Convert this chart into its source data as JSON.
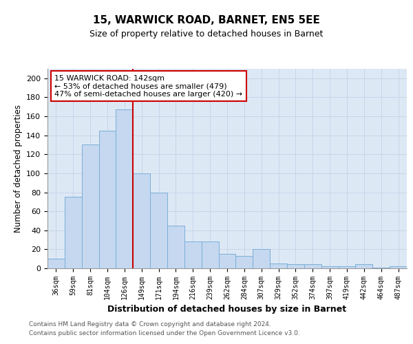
{
  "title": "15, WARWICK ROAD, BARNET, EN5 5EE",
  "subtitle": "Size of property relative to detached houses in Barnet",
  "xlabel": "Distribution of detached houses by size in Barnet",
  "ylabel": "Number of detached properties",
  "categories": [
    "36sqm",
    "59sqm",
    "81sqm",
    "104sqm",
    "126sqm",
    "149sqm",
    "171sqm",
    "194sqm",
    "216sqm",
    "239sqm",
    "262sqm",
    "284sqm",
    "307sqm",
    "329sqm",
    "352sqm",
    "374sqm",
    "397sqm",
    "419sqm",
    "442sqm",
    "464sqm",
    "487sqm"
  ],
  "values": [
    10,
    75,
    130,
    145,
    167,
    100,
    80,
    45,
    28,
    28,
    15,
    13,
    20,
    5,
    4,
    4,
    2,
    2,
    4,
    1,
    2
  ],
  "bar_color": "#c5d8f0",
  "bar_edge_color": "#7aaed6",
  "vline_x": 4.5,
  "vline_color": "#cc0000",
  "annotation_text": "15 WARWICK ROAD: 142sqm\n← 53% of detached houses are smaller (479)\n47% of semi-detached houses are larger (420) →",
  "annotation_box_color": "#ffffff",
  "annotation_box_edge": "#cc0000",
  "grid_color": "#c8d4e8",
  "background_color": "#dde8f5",
  "footer_line1": "Contains HM Land Registry data © Crown copyright and database right 2024.",
  "footer_line2": "Contains public sector information licensed under the Open Government Licence v3.0.",
  "ylim": [
    0,
    210
  ],
  "yticks": [
    0,
    20,
    40,
    60,
    80,
    100,
    120,
    140,
    160,
    180,
    200
  ]
}
